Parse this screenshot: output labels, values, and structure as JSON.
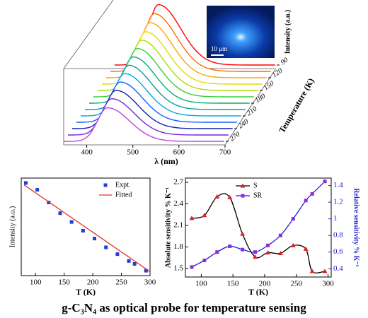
{
  "chart_data": [
    {
      "type": "waterfall",
      "x_label": "λ (nm)",
      "y_label": "Intensity (a.u.)",
      "z_label": "Temperature (K)",
      "xlim": [
        350,
        700
      ],
      "xticks": [
        400,
        500,
        600,
        700
      ],
      "ylim": [
        0,
        100
      ],
      "z": [
        90,
        105,
        120,
        135,
        150,
        165,
        180,
        195,
        210,
        225,
        240,
        255,
        270
      ],
      "zticks": [
        90,
        120,
        150,
        180,
        210,
        240,
        270
      ],
      "values": [
        90,
        86,
        82,
        78,
        75,
        72,
        69,
        66,
        63,
        60,
        57,
        54,
        50
      ],
      "colors": [
        "#ff0000",
        "#ff6a00",
        "#ffa500",
        "#e8d800",
        "#a8e000",
        "#30d030",
        "#00b070",
        "#00a0a0",
        "#00a8e8",
        "#1060ff",
        "#1020b0",
        "#7a20e0",
        "#c040e0"
      ],
      "inset_label": "10 μm"
    },
    {
      "type": "scatter",
      "x_label": "T (K)",
      "y_label": "Intensity (a.u.)",
      "xlim": [
        75,
        300
      ],
      "xticks": [
        100,
        150,
        200,
        250,
        300
      ],
      "ylim": [
        0,
        1
      ],
      "series": [
        {
          "name": "Expt.",
          "color": "#1f3fd6",
          "marker": "square",
          "x": [
            83,
            103,
            123,
            143,
            163,
            183,
            203,
            223,
            243,
            263,
            273,
            293
          ],
          "values": [
            0.95,
            0.88,
            0.75,
            0.64,
            0.55,
            0.46,
            0.38,
            0.29,
            0.22,
            0.15,
            0.12,
            0.05
          ]
        },
        {
          "name": "Fitted",
          "color": "#e03030",
          "marker": "line",
          "x": [
            80,
            300
          ],
          "values": [
            0.93,
            0.04
          ]
        }
      ]
    },
    {
      "type": "line",
      "x_label": "T (K)",
      "y_label": "Absolute sensitivity % K⁻¹",
      "y2_label": "Relative sensitivity % K⁻¹",
      "xlim": [
        75,
        305
      ],
      "xticks": [
        100,
        150,
        200,
        250,
        300
      ],
      "ylim": [
        1.38,
        2.76
      ],
      "yticks": [
        1.5,
        1.8,
        2.1,
        2.4,
        2.7
      ],
      "y2lim": [
        0.3,
        1.49
      ],
      "y2ticks": [
        0.4,
        0.6,
        0.8,
        1.0,
        1.2,
        1.4
      ],
      "series": [
        {
          "name": "S",
          "color": "#000000",
          "marker_color": "#e02020",
          "marker": "triangle",
          "x": [
            85,
            105,
            125,
            145,
            165,
            185,
            205,
            225,
            245,
            265,
            275,
            295
          ],
          "values": [
            2.2,
            2.24,
            2.5,
            2.49,
            1.98,
            1.66,
            1.72,
            1.71,
            1.82,
            1.77,
            1.46,
            1.46
          ]
        },
        {
          "name": "SR",
          "axis": "y2",
          "color": "#2020d0",
          "marker_color": "#8a2be2",
          "marker": "square",
          "x": [
            85,
            105,
            125,
            145,
            165,
            185,
            205,
            225,
            245,
            265,
            275,
            295
          ],
          "values": [
            0.42,
            0.5,
            0.6,
            0.67,
            0.63,
            0.6,
            0.68,
            0.8,
            1.0,
            1.22,
            1.3,
            1.45
          ]
        }
      ]
    }
  ],
  "caption": "g-C₃N₄ as optical probe for temperature sensing"
}
